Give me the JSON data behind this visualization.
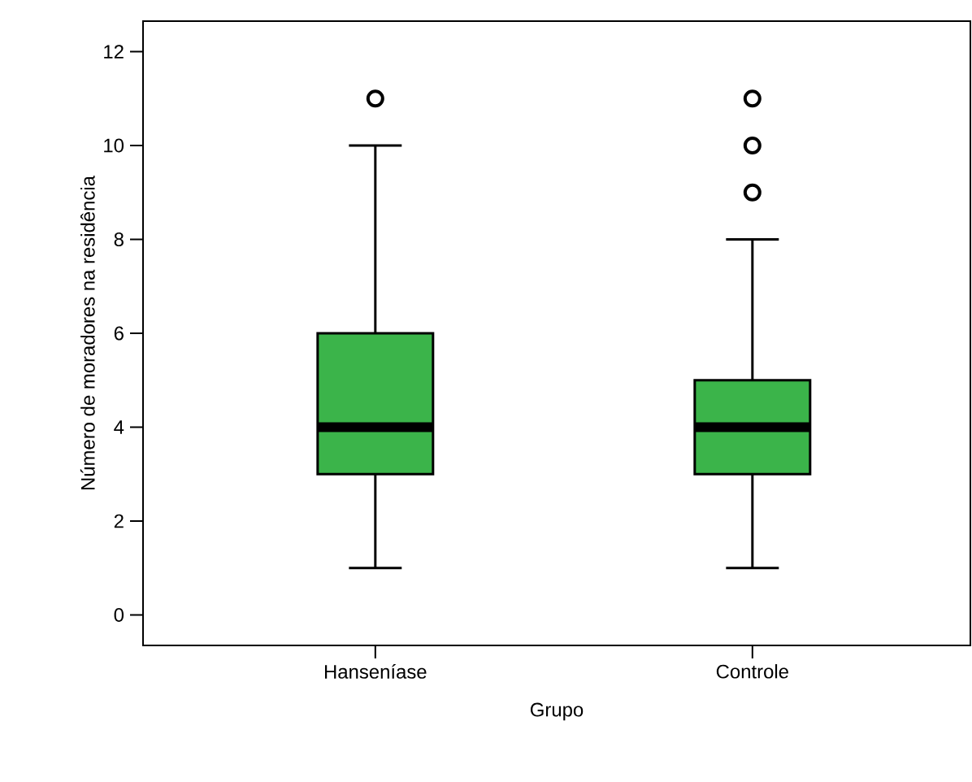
{
  "chart_data": {
    "type": "box",
    "xlabel": "Grupo",
    "ylabel": "Número de moradores na residência",
    "categories": [
      "Hanseníase",
      "Controle"
    ],
    "color": "#3bb44a",
    "boxes": [
      {
        "low": 1,
        "q1": 3,
        "median": 4,
        "q3": 6,
        "high": 10,
        "outliers": [
          11
        ]
      },
      {
        "low": 1,
        "q1": 3,
        "median": 4,
        "q3": 5,
        "high": 8,
        "outliers": [
          9,
          10,
          11
        ]
      }
    ],
    "ylim": [
      -0.65,
      12.65
    ],
    "yticks": [
      0,
      2,
      4,
      6,
      8,
      10,
      12
    ]
  }
}
